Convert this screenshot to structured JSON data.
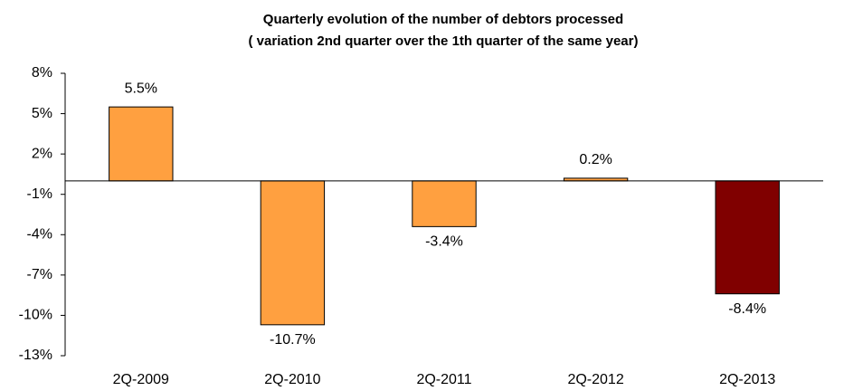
{
  "chart_data": {
    "type": "bar",
    "title": "Quarterly evolution of the number of debtors processed",
    "subtitle": "( variation  2nd quarter over the 1th quarter of the same year)",
    "categories": [
      "2Q-2009",
      "2Q-2010",
      "2Q-2011",
      "2Q-2012",
      "2Q-2013"
    ],
    "values": [
      5.5,
      -10.7,
      -3.4,
      0.2,
      -8.4
    ],
    "value_labels": [
      "5.5%",
      "-10.7%",
      "-3.4%",
      "0.2%",
      "-8.4%"
    ],
    "colors": [
      "#ffa040",
      "#ffa040",
      "#ffa040",
      "#ffa040",
      "#800000"
    ],
    "ylim": [
      -13,
      8
    ],
    "yticks": [
      {
        "value": 8,
        "label": "8%"
      },
      {
        "value": 5,
        "label": "5%"
      },
      {
        "value": 2,
        "label": "2%"
      },
      {
        "value": -1,
        "label": "-1%"
      },
      {
        "value": -4,
        "label": "-4%"
      },
      {
        "value": -7,
        "label": "-7%"
      },
      {
        "value": -10,
        "label": "-10%"
      },
      {
        "value": -13,
        "label": "-13%"
      }
    ],
    "grid": false
  }
}
